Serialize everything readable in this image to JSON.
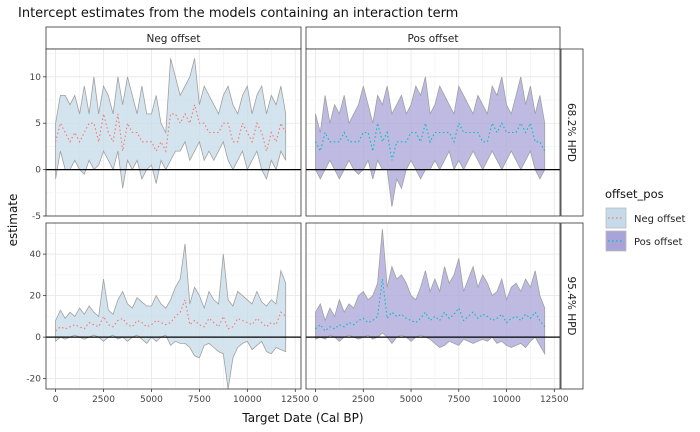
{
  "chart_data": {
    "type": "area",
    "title": "Intercept estimates from the models containing an interaction term",
    "xlabel": "Target Date (Cal BP)",
    "ylabel": "estimate",
    "x_ticks": [
      0,
      2500,
      5000,
      7500,
      10000,
      12500
    ],
    "column_strips": [
      "Neg offset",
      "Pos offset"
    ],
    "row_strips": [
      "68.2% HPD",
      "95.4% HPD"
    ],
    "legend": {
      "title": "offset_pos",
      "entries": [
        {
          "label": "Neg offset",
          "fill": "#c6dbe9",
          "line": "#f8766d"
        },
        {
          "label": "Pos offset",
          "fill": "#a8a3d8",
          "line": "#00bfc4"
        }
      ]
    },
    "rows": [
      {
        "strip": "68.2% HPD",
        "ylim": [
          -5,
          13
        ],
        "y_ticks": [
          -5,
          0,
          5,
          10
        ],
        "panels": [
          {
            "strip": "Neg offset",
            "series": "Neg offset",
            "x": [
              0,
              250,
              500,
              750,
              1000,
              1250,
              1500,
              1750,
              2000,
              2250,
              2500,
              2750,
              3000,
              3250,
              3500,
              3750,
              4000,
              4250,
              4500,
              4750,
              5000,
              5250,
              5500,
              5750,
              6000,
              6250,
              6500,
              6750,
              7000,
              7250,
              7500,
              7750,
              8000,
              8250,
              8500,
              8750,
              9000,
              9250,
              9500,
              9750,
              10000,
              10250,
              10500,
              10750,
              11000,
              11250,
              11500,
              11750,
              12000
            ],
            "lower": [
              -1,
              2,
              0,
              0,
              1,
              0,
              -0.5,
              1,
              0,
              0.5,
              2,
              1,
              0,
              2,
              -2,
              1,
              0,
              1,
              -1,
              0,
              0.5,
              -1.5,
              1,
              0,
              1,
              2,
              2,
              3,
              1,
              2,
              3,
              1,
              2,
              1,
              2,
              3,
              1,
              0,
              1,
              2,
              0,
              1,
              2,
              0,
              -1,
              1,
              0,
              2,
              1
            ],
            "upper": [
              5,
              8,
              8,
              7,
              8,
              6,
              9,
              6,
              10,
              6,
              9,
              8,
              6,
              10,
              7,
              10,
              8,
              6,
              9,
              6,
              6,
              8,
              5,
              4,
              12,
              10,
              8,
              9,
              10,
              12,
              7,
              9,
              8,
              7,
              6,
              8,
              9,
              7,
              6,
              8,
              9,
              6,
              8,
              9,
              6,
              8,
              7,
              9,
              6
            ],
            "estimate": [
              3,
              5,
              4,
              3,
              4,
              3,
              4,
              5,
              5,
              3,
              6,
              4,
              3,
              6,
              2,
              5,
              4,
              4,
              3,
              3,
              3,
              2,
              3,
              2,
              6,
              6,
              5,
              6,
              5,
              7,
              5,
              5,
              4,
              4,
              4,
              5,
              5,
              3,
              3,
              5,
              4,
              3,
              5,
              4,
              2,
              4,
              3,
              5,
              4
            ]
          },
          {
            "strip": "Pos offset",
            "series": "Pos offset",
            "x": [
              0,
              250,
              500,
              750,
              1000,
              1250,
              1500,
              1750,
              2000,
              2250,
              2500,
              2750,
              3000,
              3250,
              3500,
              3750,
              4000,
              4250,
              4500,
              4750,
              5000,
              5250,
              5500,
              5750,
              6000,
              6250,
              6500,
              6750,
              7000,
              7250,
              7500,
              7750,
              8000,
              8250,
              8500,
              8750,
              9000,
              9250,
              9500,
              9750,
              10000,
              10250,
              10500,
              10750,
              11000,
              11250,
              11500,
              11750,
              12000
            ],
            "lower": [
              0,
              -1,
              0,
              1,
              0,
              -1,
              0,
              1,
              0,
              -0.5,
              0,
              1,
              -1,
              1,
              0,
              0,
              -4,
              -1,
              -2,
              0,
              1,
              0,
              -1,
              0,
              0,
              1,
              0,
              1,
              2,
              0,
              1,
              0,
              1,
              2,
              1,
              0,
              1,
              2,
              1,
              0,
              1,
              2,
              1,
              0,
              1,
              2,
              0,
              -1,
              0
            ],
            "upper": [
              6,
              4,
              8,
              5,
              7,
              6,
              8,
              5,
              6,
              7,
              9,
              7,
              5,
              8,
              7,
              9,
              6,
              7,
              8,
              6,
              7,
              9,
              8,
              10,
              6,
              7,
              9,
              8,
              7,
              6,
              9,
              8,
              7,
              6,
              8,
              7,
              6,
              9,
              8,
              10,
              7,
              6,
              8,
              10,
              7,
              9,
              6,
              8,
              5
            ],
            "estimate": [
              3,
              2,
              4,
              3,
              3,
              3,
              4,
              3,
              3,
              3,
              4,
              4,
              2,
              5,
              3,
              4,
              1,
              3,
              3,
              3,
              4,
              4,
              3,
              5,
              3,
              4,
              4,
              4,
              4,
              3,
              5,
              4,
              4,
              4,
              4,
              3,
              3,
              5,
              4,
              5,
              4,
              4,
              4,
              5,
              4,
              5,
              3,
              3,
              2
            ]
          }
        ]
      },
      {
        "strip": "95.4% HPD",
        "ylim": [
          -25,
          55
        ],
        "y_ticks": [
          -20,
          0,
          20,
          40
        ],
        "panels": [
          {
            "strip": "Neg offset",
            "series": "Neg offset",
            "x": [
              0,
              250,
              500,
              750,
              1000,
              1250,
              1500,
              1750,
              2000,
              2250,
              2500,
              2750,
              3000,
              3250,
              3500,
              3750,
              4000,
              4250,
              4500,
              4750,
              5000,
              5250,
              5500,
              5750,
              6000,
              6250,
              6500,
              6750,
              7000,
              7250,
              7500,
              7750,
              8000,
              8250,
              8500,
              8750,
              9000,
              9250,
              9500,
              9750,
              10000,
              10250,
              10500,
              10750,
              11000,
              11250,
              11500,
              11750,
              12000
            ],
            "lower": [
              -2,
              0,
              -1,
              0,
              1,
              0,
              -1,
              0,
              1,
              0,
              -2,
              0,
              1,
              -1,
              0,
              -2,
              0,
              1,
              -1,
              -3,
              0,
              -2,
              0,
              1,
              -4,
              -2,
              -3,
              -3,
              -5,
              -9,
              -10,
              -4,
              -3,
              -5,
              -7,
              -8,
              -25,
              -10,
              -5,
              -3,
              -2,
              -6,
              -4,
              -2,
              -7,
              -8,
              -5,
              -6,
              -7
            ],
            "upper": [
              8,
              13,
              9,
              12,
              10,
              14,
              11,
              15,
              12,
              10,
              28,
              13,
              11,
              18,
              22,
              16,
              14,
              19,
              17,
              15,
              15,
              20,
              16,
              14,
              18,
              24,
              28,
              45,
              16,
              24,
              20,
              14,
              22,
              18,
              16,
              40,
              18,
              15,
              22,
              20,
              18,
              16,
              22,
              17,
              15,
              18,
              16,
              32,
              26
            ],
            "estimate": [
              3,
              5,
              4,
              5,
              6,
              5,
              4,
              7,
              6,
              5,
              10,
              6,
              5,
              8,
              9,
              6,
              5,
              8,
              7,
              5,
              6,
              8,
              7,
              6,
              7,
              10,
              12,
              18,
              6,
              8,
              6,
              5,
              9,
              7,
              5,
              10,
              4,
              5,
              9,
              8,
              7,
              6,
              9,
              7,
              5,
              7,
              6,
              12,
              10
            ]
          },
          {
            "strip": "Pos offset",
            "series": "Pos offset",
            "x": [
              0,
              250,
              500,
              750,
              1000,
              1250,
              1500,
              1750,
              2000,
              2250,
              2500,
              2750,
              3000,
              3250,
              3500,
              3750,
              4000,
              4250,
              4500,
              4750,
              5000,
              5250,
              5500,
              5750,
              6000,
              6250,
              6500,
              6750,
              7000,
              7250,
              7500,
              7750,
              8000,
              8250,
              8500,
              8750,
              9000,
              9250,
              9500,
              9750,
              10000,
              10250,
              10500,
              10750,
              11000,
              11250,
              11500,
              11750,
              12000
            ],
            "lower": [
              -1,
              0,
              -1,
              1,
              0,
              -2,
              0,
              1,
              0,
              -1,
              0,
              1,
              -1,
              0,
              2,
              0,
              -3,
              0,
              1,
              0,
              -2,
              0,
              1,
              0,
              -1,
              -3,
              -5,
              -4,
              -2,
              -3,
              -4,
              -1,
              -2,
              -3,
              -2,
              -1,
              -2,
              0,
              -3,
              -2,
              -4,
              -5,
              -4,
              -3,
              -5,
              -2,
              0,
              -4,
              -8
            ],
            "upper": [
              12,
              16,
              8,
              14,
              10,
              18,
              12,
              16,
              14,
              20,
              22,
              18,
              20,
              26,
              52,
              24,
              34,
              28,
              30,
              26,
              20,
              18,
              24,
              32,
              22,
              28,
              22,
              34,
              26,
              30,
              38,
              22,
              28,
              34,
              24,
              30,
              26,
              20,
              22,
              28,
              18,
              24,
              26,
              22,
              28,
              24,
              32,
              20,
              14
            ],
            "estimate": [
              4,
              6,
              3,
              5,
              4,
              6,
              5,
              7,
              6,
              8,
              9,
              7,
              8,
              10,
              28,
              9,
              12,
              10,
              11,
              9,
              8,
              7,
              9,
              12,
              8,
              10,
              8,
              12,
              9,
              11,
              14,
              8,
              10,
              12,
              9,
              11,
              10,
              8,
              9,
              11,
              7,
              9,
              10,
              8,
              11,
              9,
              12,
              8,
              5
            ]
          }
        ]
      }
    ]
  }
}
